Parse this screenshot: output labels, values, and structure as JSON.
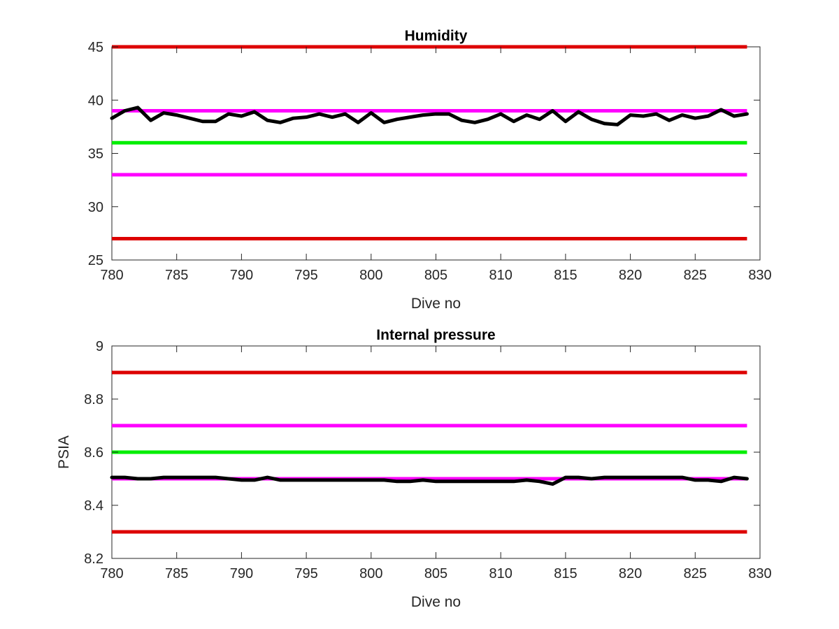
{
  "chart_data": [
    {
      "type": "line",
      "title": "Humidity",
      "xlabel": "Dive no",
      "ylabel": "",
      "xlim": [
        780,
        830
      ],
      "ylim": [
        25,
        45
      ],
      "xticks": [
        780,
        785,
        790,
        795,
        800,
        805,
        810,
        815,
        820,
        825,
        830
      ],
      "yticks": [
        25,
        30,
        35,
        40,
        45
      ],
      "grid": false,
      "hlines": [
        {
          "y": 45,
          "color": "#dd0000",
          "x_range": [
            780,
            829
          ]
        },
        {
          "y": 27,
          "color": "#dd0000",
          "x_range": [
            780,
            829
          ]
        },
        {
          "y": 39,
          "color": "#ff00ff",
          "x_range": [
            780,
            829
          ]
        },
        {
          "y": 33,
          "color": "#ff00ff",
          "x_range": [
            780,
            829
          ]
        },
        {
          "y": 36,
          "color": "#00ee00",
          "x_range": [
            780,
            829
          ]
        }
      ],
      "series": [
        {
          "color": "#000000",
          "x": [
            780,
            781,
            782,
            783,
            784,
            785,
            786,
            787,
            788,
            789,
            790,
            791,
            792,
            793,
            794,
            795,
            796,
            797,
            798,
            799,
            800,
            801,
            802,
            803,
            804,
            805,
            806,
            807,
            808,
            809,
            810,
            811,
            812,
            813,
            814,
            815,
            816,
            817,
            818,
            819,
            820,
            821,
            822,
            823,
            824,
            825,
            826,
            827,
            828,
            829
          ],
          "y": [
            38.3,
            39.0,
            39.3,
            38.1,
            38.8,
            38.6,
            38.3,
            38.0,
            38.0,
            38.7,
            38.5,
            38.9,
            38.1,
            37.9,
            38.3,
            38.4,
            38.7,
            38.4,
            38.7,
            37.9,
            38.8,
            37.9,
            38.2,
            38.4,
            38.6,
            38.7,
            38.7,
            38.1,
            37.9,
            38.2,
            38.7,
            38.0,
            38.6,
            38.2,
            39.0,
            38.0,
            38.9,
            38.2,
            37.8,
            37.7,
            38.6,
            38.5,
            38.7,
            38.1,
            38.6,
            38.3,
            38.5,
            39.1,
            38.5,
            38.7
          ]
        }
      ]
    },
    {
      "type": "line",
      "title": "Internal pressure",
      "xlabel": "Dive no",
      "ylabel": "PSIA",
      "xlim": [
        780,
        830
      ],
      "ylim": [
        8.2,
        9.0
      ],
      "xticks": [
        780,
        785,
        790,
        795,
        800,
        805,
        810,
        815,
        820,
        825,
        830
      ],
      "yticks": [
        8.2,
        8.4,
        8.6,
        8.8,
        9
      ],
      "grid": false,
      "hlines": [
        {
          "y": 8.9,
          "color": "#dd0000",
          "x_range": [
            780,
            829
          ]
        },
        {
          "y": 8.3,
          "color": "#dd0000",
          "x_range": [
            780,
            829
          ]
        },
        {
          "y": 8.7,
          "color": "#ff00ff",
          "x_range": [
            780,
            829
          ]
        },
        {
          "y": 8.5,
          "color": "#ff00ff",
          "x_range": [
            780,
            829
          ]
        },
        {
          "y": 8.6,
          "color": "#00ee00",
          "x_range": [
            780,
            829
          ]
        }
      ],
      "series": [
        {
          "color": "#000000",
          "x": [
            780,
            781,
            782,
            783,
            784,
            785,
            786,
            787,
            788,
            789,
            790,
            791,
            792,
            793,
            794,
            795,
            796,
            797,
            798,
            799,
            800,
            801,
            802,
            803,
            804,
            805,
            806,
            807,
            808,
            809,
            810,
            811,
            812,
            813,
            814,
            815,
            816,
            817,
            818,
            819,
            820,
            821,
            822,
            823,
            824,
            825,
            826,
            827,
            828,
            829
          ],
          "y": [
            8.505,
            8.505,
            8.5,
            8.5,
            8.505,
            8.505,
            8.505,
            8.505,
            8.505,
            8.5,
            8.495,
            8.495,
            8.505,
            8.495,
            8.495,
            8.495,
            8.495,
            8.495,
            8.495,
            8.495,
            8.495,
            8.495,
            8.49,
            8.49,
            8.495,
            8.49,
            8.49,
            8.49,
            8.49,
            8.49,
            8.49,
            8.49,
            8.495,
            8.49,
            8.48,
            8.505,
            8.505,
            8.5,
            8.505,
            8.505,
            8.505,
            8.505,
            8.505,
            8.505,
            8.505,
            8.495,
            8.495,
            8.49,
            8.505,
            8.5
          ]
        }
      ]
    }
  ]
}
